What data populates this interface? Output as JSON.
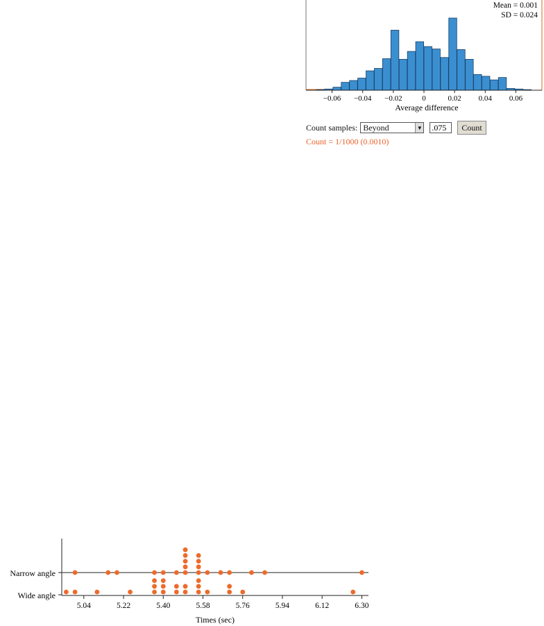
{
  "histogram": {
    "stats": {
      "mean": "Mean = 0.001",
      "sd": "SD = 0.024"
    },
    "xlabel": "Average difference",
    "bar_color": "#3a8fd0",
    "marker_color": "#e0803a"
  },
  "controls": {
    "count_label": "Count samples:",
    "selected_option": "Beyond",
    "threshold_value": ".075",
    "count_button": "Count",
    "result": "Count = 1/1000 (0.0010)",
    "result_color": "#e8622a"
  },
  "dotplot": {
    "dot_color": "#ee6a2a"
  },
  "chart_data": [
    {
      "type": "bar",
      "xlabel": "Average difference",
      "ylabel": "",
      "x_ticks": [
        "−0.06",
        "−0.04",
        "−0.02",
        "0",
        "0.02",
        "0.04",
        "0.06"
      ],
      "xlim": [
        -0.077,
        0.077
      ],
      "bin_width": 0.0054,
      "bin_centers": [
        -0.0675,
        -0.0621,
        -0.0567,
        -0.0513,
        -0.0459,
        -0.0405,
        -0.0351,
        -0.0297,
        -0.0243,
        -0.0189,
        -0.0135,
        -0.0081,
        -0.0027,
        0.0027,
        0.0081,
        0.0135,
        0.0189,
        0.0243,
        0.0297,
        0.0351,
        0.0405,
        0.0459,
        0.0513,
        0.0567,
        0.0621,
        0.0675
      ],
      "values": [
        1,
        2,
        5,
        13,
        16,
        20,
        32,
        36,
        52,
        99,
        51,
        64,
        80,
        72,
        68,
        54,
        119,
        67,
        51,
        26,
        23,
        17,
        21,
        3,
        2,
        1
      ],
      "annotations": [
        "Mean = 0.001",
        "SD = 0.024"
      ]
    },
    {
      "type": "scatter",
      "subtype": "dotplot",
      "xlabel": "Times (sec)",
      "ylabel": "",
      "categories": [
        "Narrow angle",
        "Wide angle"
      ],
      "x_ticks": [
        "5.04",
        "5.22",
        "5.40",
        "5.58",
        "5.76",
        "5.94",
        "6.12",
        "6.30"
      ],
      "xlim": [
        4.94,
        6.33
      ],
      "series": [
        {
          "name": "Narrow angle",
          "values": [
            5.0,
            5.15,
            5.19,
            5.36,
            5.4,
            5.46,
            5.5,
            5.5,
            5.5,
            5.5,
            5.5,
            5.56,
            5.56,
            5.56,
            5.56,
            5.6,
            5.66,
            5.7,
            5.8,
            5.86,
            6.3
          ]
        },
        {
          "name": "Wide angle",
          "values": [
            4.96,
            5.0,
            5.1,
            5.25,
            5.36,
            5.36,
            5.36,
            5.4,
            5.4,
            5.4,
            5.46,
            5.46,
            5.5,
            5.5,
            5.56,
            5.56,
            5.56,
            5.6,
            5.7,
            5.7,
            5.76,
            6.26
          ]
        }
      ]
    }
  ]
}
